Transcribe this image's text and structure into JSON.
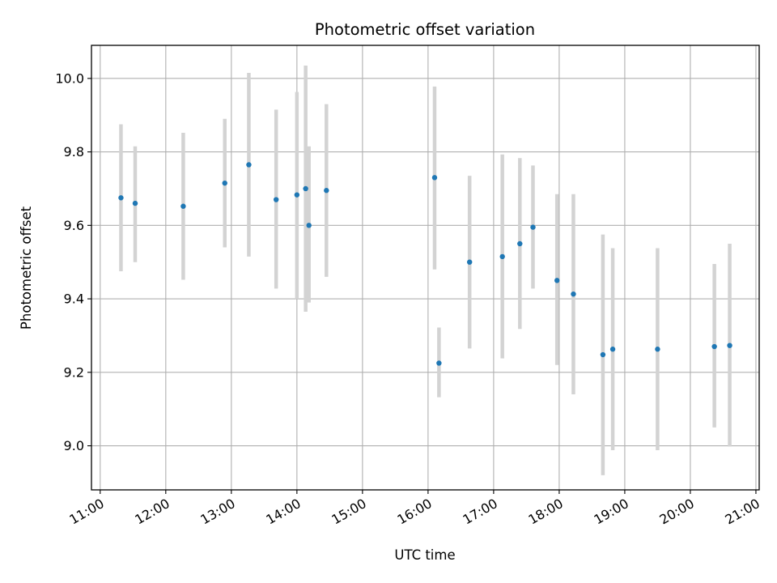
{
  "chart_data": {
    "type": "scatter",
    "title": "Photometric offset variation",
    "xlabel": "UTC time",
    "ylabel": "Photometric offset",
    "x_tick_labels": [
      "11:00",
      "12:00",
      "13:00",
      "14:00",
      "15:00",
      "16:00",
      "17:00",
      "18:00",
      "19:00",
      "20:00",
      "21:00"
    ],
    "x_ticks": [
      "11:00",
      "12:00",
      "13:00",
      "14:00",
      "15:00",
      "16:00",
      "17:00",
      "18:00",
      "19:00",
      "20:00",
      "21:00"
    ],
    "y_ticks": [
      9.0,
      9.2,
      9.4,
      9.6,
      9.8,
      10.0
    ],
    "y_tick_labels": [
      "9.0",
      "9.2",
      "9.4",
      "9.6",
      "9.8",
      "10.0"
    ],
    "xlim": [
      "10:52",
      "21:03"
    ],
    "ylim": [
      8.88,
      10.09
    ],
    "grid": true,
    "marker_color": "#1f77b4",
    "errorbar_color": "#d3d3d3",
    "points": [
      {
        "time": "11:19",
        "value": 9.675,
        "low": 9.475,
        "high": 9.875
      },
      {
        "time": "11:32",
        "value": 9.66,
        "low": 9.5,
        "high": 9.815
      },
      {
        "time": "12:16",
        "value": 9.652,
        "low": 9.452,
        "high": 9.852
      },
      {
        "time": "12:54",
        "value": 9.715,
        "low": 9.54,
        "high": 9.89
      },
      {
        "time": "13:16",
        "value": 9.765,
        "low": 9.515,
        "high": 10.015
      },
      {
        "time": "13:41",
        "value": 9.67,
        "low": 9.428,
        "high": 9.915
      },
      {
        "time": "14:00",
        "value": 9.683,
        "low": 9.4,
        "high": 9.963
      },
      {
        "time": "14:08",
        "value": 9.7,
        "low": 9.365,
        "high": 10.035
      },
      {
        "time": "14:11",
        "value": 9.6,
        "low": 9.39,
        "high": 9.815
      },
      {
        "time": "14:27",
        "value": 9.695,
        "low": 9.46,
        "high": 9.93
      },
      {
        "time": "16:06",
        "value": 9.73,
        "low": 9.48,
        "high": 9.978
      },
      {
        "time": "16:10",
        "value": 9.225,
        "low": 9.132,
        "high": 9.322
      },
      {
        "time": "16:38",
        "value": 9.5,
        "low": 9.265,
        "high": 9.735
      },
      {
        "time": "17:08",
        "value": 9.515,
        "low": 9.238,
        "high": 9.793
      },
      {
        "time": "17:24",
        "value": 9.55,
        "low": 9.318,
        "high": 9.783
      },
      {
        "time": "17:36",
        "value": 9.595,
        "low": 9.428,
        "high": 9.763
      },
      {
        "time": "17:58",
        "value": 9.45,
        "low": 9.22,
        "high": 9.685
      },
      {
        "time": "18:13",
        "value": 9.413,
        "low": 9.14,
        "high": 9.685
      },
      {
        "time": "18:40",
        "value": 9.248,
        "low": 8.92,
        "high": 9.575
      },
      {
        "time": "18:49",
        "value": 9.263,
        "low": 8.988,
        "high": 9.538
      },
      {
        "time": "19:30",
        "value": 9.263,
        "low": 8.988,
        "high": 9.538
      },
      {
        "time": "20:22",
        "value": 9.27,
        "low": 9.05,
        "high": 9.495
      },
      {
        "time": "20:36",
        "value": 9.273,
        "low": 8.998,
        "high": 9.55
      }
    ]
  }
}
